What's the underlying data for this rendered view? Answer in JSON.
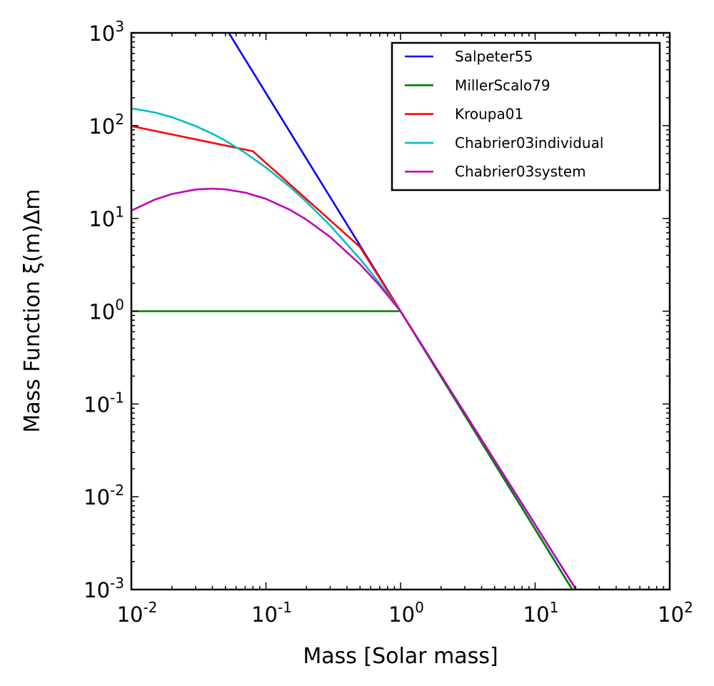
{
  "chart_data": {
    "type": "line",
    "xlabel": "Mass [Solar mass]",
    "ylabel": "Mass Function ξ(m)Δm",
    "xscale": "log",
    "yscale": "log",
    "xlim": [
      0.01,
      100
    ],
    "ylim": [
      0.001,
      1000
    ],
    "x_ticks": [
      {
        "base": "10",
        "exp": "-2",
        "value": 0.01
      },
      {
        "base": "10",
        "exp": "-1",
        "value": 0.1
      },
      {
        "base": "10",
        "exp": "0",
        "value": 1
      },
      {
        "base": "10",
        "exp": "1",
        "value": 10
      },
      {
        "base": "10",
        "exp": "2",
        "value": 100
      }
    ],
    "y_ticks": [
      {
        "base": "10",
        "exp": "-3",
        "value": 0.001
      },
      {
        "base": "10",
        "exp": "-2",
        "value": 0.01
      },
      {
        "base": "10",
        "exp": "-1",
        "value": 0.1
      },
      {
        "base": "10",
        "exp": "0",
        "value": 1
      },
      {
        "base": "10",
        "exp": "1",
        "value": 10
      },
      {
        "base": "10",
        "exp": "2",
        "value": 100
      },
      {
        "base": "10",
        "exp": "3",
        "value": 1000
      }
    ],
    "grid": false,
    "legend_position": "top-right",
    "series": [
      {
        "name": "Salpeter55",
        "color": "#0000ff",
        "x": [
          0.01,
          1,
          100
        ],
        "y": [
          50119,
          1,
          1.995e-05
        ]
      },
      {
        "name": "MillerScalo79",
        "color": "#008000",
        "x": [
          0.01,
          1,
          2,
          5,
          10,
          20
        ],
        "y": [
          1,
          1,
          0.1961,
          0.0227,
          0.00447,
          0.000873
        ]
      },
      {
        "name": "Kroupa01",
        "color": "#ff0000",
        "x": [
          0.01,
          0.08,
          0.5,
          1,
          2,
          5,
          10,
          20
        ],
        "y": [
          99,
          53,
          4.92,
          1,
          0.2031,
          0.02467,
          0.005012,
          0.001018
        ]
      },
      {
        "name": "Chabrier03individual",
        "color": "#00bfbf",
        "x": [
          0.01,
          0.015,
          0.02,
          0.03,
          0.04,
          0.05,
          0.07,
          0.1,
          0.15,
          0.2,
          0.3,
          0.5,
          0.7,
          1,
          2,
          5,
          10,
          20
        ],
        "y": [
          153.7,
          138.3,
          123.3,
          99.2,
          81.7,
          68.8,
          51.0,
          35.4,
          22.0,
          15.1,
          8.4,
          3.65,
          1.995,
          1,
          0.2031,
          0.02467,
          0.005012,
          0.001018
        ]
      },
      {
        "name": "Chabrier03system",
        "color": "#bf00bf",
        "x": [
          0.01,
          0.015,
          0.02,
          0.03,
          0.04,
          0.05,
          0.07,
          0.1,
          0.15,
          0.2,
          0.3,
          0.5,
          0.7,
          1,
          2,
          5,
          10,
          20
        ],
        "y": [
          12.15,
          15.98,
          18.33,
          20.48,
          20.92,
          20.57,
          18.99,
          16.24,
          12.43,
          9.7,
          6.31,
          3.2,
          1.884,
          1,
          0.2031,
          0.02467,
          0.005012,
          0.001018
        ]
      }
    ]
  }
}
